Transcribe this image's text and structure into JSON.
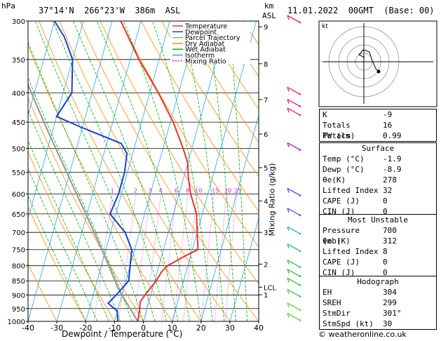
{
  "header": {
    "pressure_unit": "hPa",
    "location": "37°14'N  266°23'W  386m  ASL",
    "height_unit": "km",
    "height_unit2": "ASL",
    "datetime": "11.01.2022  00GMT  (Base: 00)"
  },
  "footer": {
    "credit": "© weatheronline.co.uk"
  },
  "colors": {
    "temperature": "#e8322d",
    "dewpoint": "#1a3fd6",
    "parcel": "#9a9a9a",
    "dry_adiabat": "#ff8a00",
    "wet_adiabat": "#00b000",
    "isotherm": "#1ea7e0",
    "mixing_ratio": "#d61ad6"
  },
  "legend": [
    {
      "label": "Temperature",
      "color": "#e8322d",
      "dash": ""
    },
    {
      "label": "Dewpoint",
      "color": "#1a3fd6",
      "dash": ""
    },
    {
      "label": "Parcel Trajectory",
      "color": "#9a9a9a",
      "dash": ""
    },
    {
      "label": "Dry Adiabat",
      "color": "#ff8a00",
      "dash": ""
    },
    {
      "label": "Wet Adiabat",
      "color": "#00b000",
      "dash": ""
    },
    {
      "label": "Isotherm",
      "color": "#1ea7e0",
      "dash": ""
    },
    {
      "label": "Mixing Ratio",
      "color": "#d61ad6",
      "dash": "2,2"
    }
  ],
  "chart_data": {
    "type": "line",
    "xlabel": "Dewpoint / Temperature (°C)",
    "ylabel": "",
    "xlim": [
      -40,
      40
    ],
    "ylim": [
      1000,
      300
    ],
    "x_ticks": [
      -40,
      -30,
      -20,
      -10,
      0,
      10,
      20,
      30,
      40
    ],
    "pressure_ticks": [
      300,
      350,
      400,
      450,
      500,
      550,
      600,
      650,
      700,
      750,
      800,
      850,
      900,
      950,
      1000
    ],
    "height_km_ticks": [
      {
        "label": "9",
        "p": 307
      },
      {
        "label": "8",
        "p": 356
      },
      {
        "label": "7",
        "p": 411
      },
      {
        "label": "6",
        "p": 472
      },
      {
        "label": "5",
        "p": 540
      },
      {
        "label": "4",
        "p": 617
      },
      {
        "label": "3",
        "p": 700
      },
      {
        "label": "2",
        "p": 795
      },
      {
        "label": "1",
        "p": 899
      },
      {
        "label": "LCL",
        "p": 872
      }
    ],
    "mixing_ratio_labels": [
      "1",
      "2",
      "3",
      "4",
      "6",
      "8",
      "10",
      "15",
      "20",
      "25"
    ],
    "mixing_ratio_axis_label": "Mixing Ratio (g/kg)",
    "series": [
      {
        "name": "Temperature",
        "points": [
          [
            1000,
            -1.9
          ],
          [
            950,
            -2.5
          ],
          [
            925,
            -3
          ],
          [
            900,
            -2
          ],
          [
            850,
            0.5
          ],
          [
            820,
            1.5
          ],
          [
            800,
            3
          ],
          [
            770,
            8
          ],
          [
            750,
            12
          ],
          [
            700,
            10
          ],
          [
            650,
            8
          ],
          [
            600,
            4
          ],
          [
            560,
            1.5
          ],
          [
            530,
            0
          ],
          [
            500,
            -3
          ],
          [
            450,
            -9
          ],
          [
            400,
            -17
          ],
          [
            350,
            -27
          ],
          [
            300,
            -37
          ]
        ]
      },
      {
        "name": "Dewpoint",
        "points": [
          [
            1000,
            -8.9
          ],
          [
            960,
            -10
          ],
          [
            930,
            -14
          ],
          [
            900,
            -12
          ],
          [
            850,
            -9
          ],
          [
            800,
            -10
          ],
          [
            750,
            -11
          ],
          [
            700,
            -15
          ],
          [
            650,
            -22
          ],
          [
            600,
            -21
          ],
          [
            550,
            -21
          ],
          [
            510,
            -22
          ],
          [
            490,
            -25
          ],
          [
            460,
            -40
          ],
          [
            440,
            -50
          ],
          [
            400,
            -47
          ],
          [
            350,
            -50
          ],
          [
            320,
            -55
          ],
          [
            300,
            -60
          ]
        ]
      }
    ]
  },
  "hodograph": {
    "label": "kt"
  },
  "indices": {
    "top": [
      {
        "k": "K",
        "v": "-9"
      },
      {
        "k": "Totals Totals",
        "v": "16"
      },
      {
        "k": "PW (cm)",
        "v": "0.99"
      }
    ],
    "surface": {
      "title": "Surface",
      "rows": [
        {
          "k": "Temp (°C)",
          "v": "-1.9"
        },
        {
          "k": "Dewp (°C)",
          "v": "-8.9"
        },
        {
          "k": "θe(K)",
          "v": "278"
        },
        {
          "k": "Lifted Index",
          "v": "32"
        },
        {
          "k": "CAPE (J)",
          "v": "0"
        },
        {
          "k": "CIN (J)",
          "v": "0"
        }
      ]
    },
    "most_unstable": {
      "title": "Most Unstable",
      "rows": [
        {
          "k": "Pressure (mb)",
          "v": "700"
        },
        {
          "k": "θe (K)",
          "v": "312"
        },
        {
          "k": "Lifted Index",
          "v": "8"
        },
        {
          "k": "CAPE (J)",
          "v": "0"
        },
        {
          "k": "CIN (J)",
          "v": "0"
        }
      ]
    },
    "hodograph": {
      "title": "Hodograph",
      "rows": [
        {
          "k": "EH",
          "v": "304"
        },
        {
          "k": "SREH",
          "v": "299"
        },
        {
          "k": "StmDir",
          "v": "301°"
        },
        {
          "k": "StmSpd (kt)",
          "v": "30"
        }
      ]
    }
  }
}
